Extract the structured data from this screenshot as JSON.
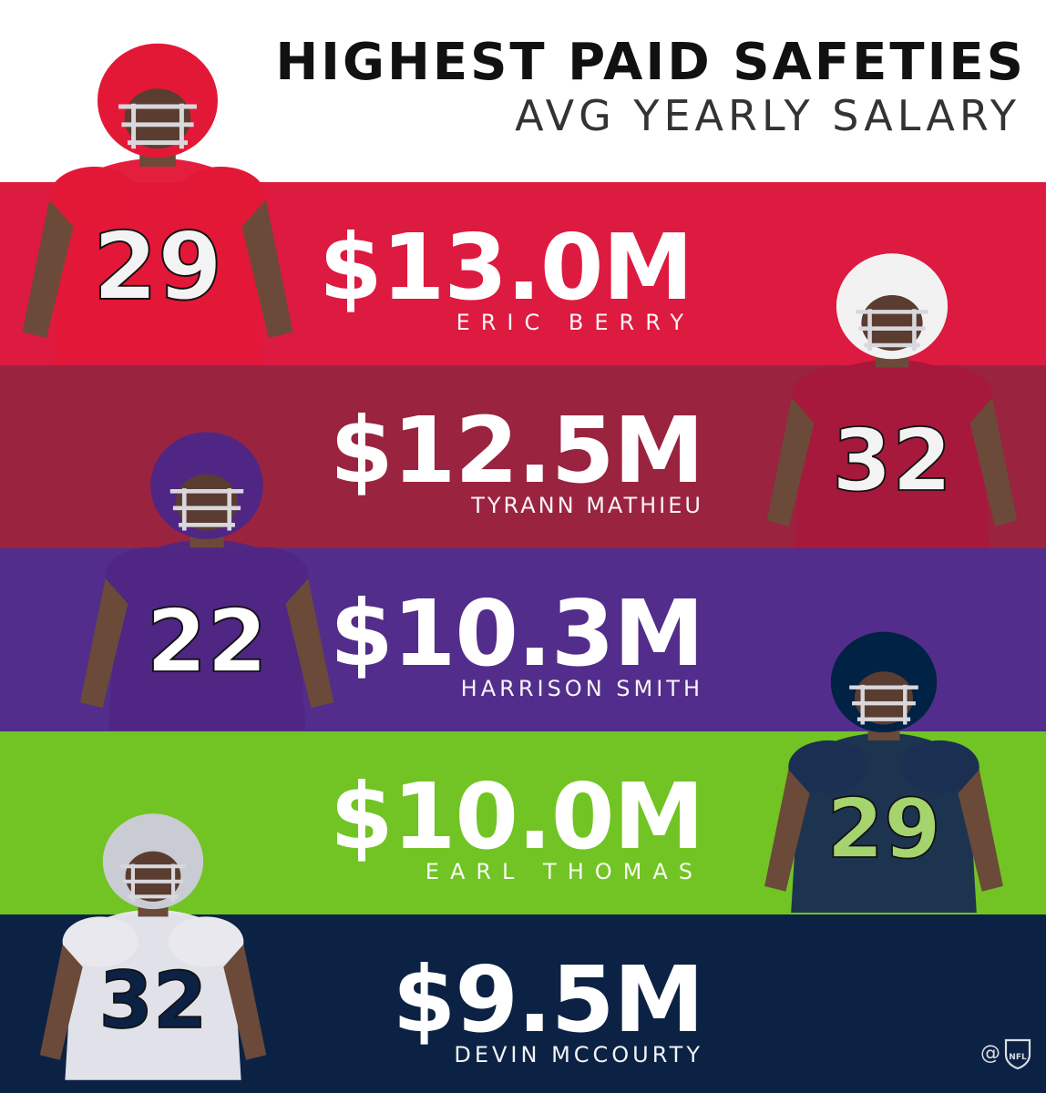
{
  "header": {
    "title": "HIGHEST PAID SAFETIES",
    "subtitle": "AVG YEARLY SALARY"
  },
  "colors": {
    "background": "#ffffff",
    "rank_band_colors": [
      "#dd1a40",
      "#9a2340",
      "#532d8b",
      "#71c423",
      "#0c2244"
    ]
  },
  "chart_data": {
    "type": "bar",
    "title": "HIGHEST PAID SAFETIES",
    "subtitle": "AVG YEARLY SALARY",
    "categories": [
      "ERIC BERRY",
      "TYRANN MATHIEU",
      "HARRISON SMITH",
      "EARL THOMAS",
      "DEVIN MCCOURTY"
    ],
    "values": [
      13.0,
      12.5,
      10.3,
      10.0,
      9.5
    ],
    "value_labels": [
      "$13.0M",
      "$12.5M",
      "$10.3M",
      "$10.0M",
      "$9.5M"
    ]
  },
  "players": [
    {
      "name": "ERIC BERRY",
      "jersey": "29",
      "team_icon": "chiefs-player-photo"
    },
    {
      "name": "TYRANN MATHIEU",
      "jersey": "32",
      "team_icon": "cardinals-player-photo"
    },
    {
      "name": "HARRISON SMITH",
      "jersey": "22",
      "team_icon": "vikings-player-photo"
    },
    {
      "name": "EARL THOMAS",
      "jersey": "29",
      "team_icon": "seahawks-player-photo"
    },
    {
      "name": "DEVIN MCCOURTY",
      "jersey": "32",
      "team_icon": "patriots-player-photo"
    }
  ],
  "credit": {
    "at_sign": "@",
    "logo": "nfl-shield-icon"
  }
}
